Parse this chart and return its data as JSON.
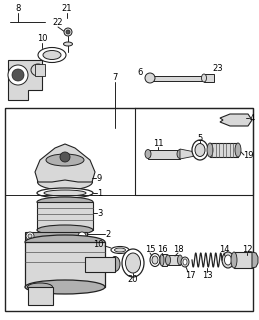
{
  "bg_color": "#ffffff",
  "line_color": "#222222",
  "gray_fill": "#b0b0b0",
  "light_gray": "#d8d8d8",
  "dark_gray": "#555555",
  "white": "#ffffff",
  "figsize": [
    2.59,
    3.2
  ],
  "dpi": 100
}
